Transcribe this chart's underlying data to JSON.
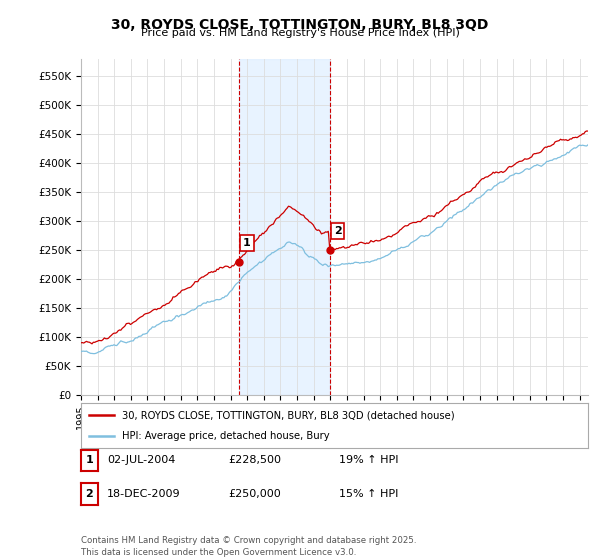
{
  "title": "30, ROYDS CLOSE, TOTTINGTON, BURY, BL8 3QD",
  "subtitle": "Price paid vs. HM Land Registry's House Price Index (HPI)",
  "background_color": "#ffffff",
  "plot_bg_color": "#ffffff",
  "grid_color": "#dddddd",
  "ylim": [
    0,
    580000
  ],
  "yticks": [
    0,
    50000,
    100000,
    150000,
    200000,
    250000,
    300000,
    350000,
    400000,
    450000,
    500000,
    550000
  ],
  "ytick_labels": [
    "£0",
    "£50K",
    "£100K",
    "£150K",
    "£200K",
    "£250K",
    "£300K",
    "£350K",
    "£400K",
    "£450K",
    "£500K",
    "£550K"
  ],
  "red_line_color": "#cc0000",
  "blue_line_color": "#7fbfdf",
  "sale1_price": 228500,
  "sale1_label": "1",
  "sale1_x": 2004.5,
  "sale2_price": 250000,
  "sale2_label": "2",
  "sale2_x": 2009.96,
  "shade_color": "#ddeeff",
  "vline_color": "#cc0000",
  "legend_red_label": "30, ROYDS CLOSE, TOTTINGTON, BURY, BL8 3QD (detached house)",
  "legend_blue_label": "HPI: Average price, detached house, Bury",
  "annotation_box_color": "#ffffff",
  "annotation_border_color": "#cc0000",
  "footnote": "Contains HM Land Registry data © Crown copyright and database right 2025.\nThis data is licensed under the Open Government Licence v3.0.",
  "table_row1": [
    "1",
    "02-JUL-2004",
    "£228,500",
    "19% ↑ HPI"
  ],
  "table_row2": [
    "2",
    "18-DEC-2009",
    "£250,000",
    "15% ↑ HPI"
  ],
  "xmin": 1995.0,
  "xmax": 2025.5
}
